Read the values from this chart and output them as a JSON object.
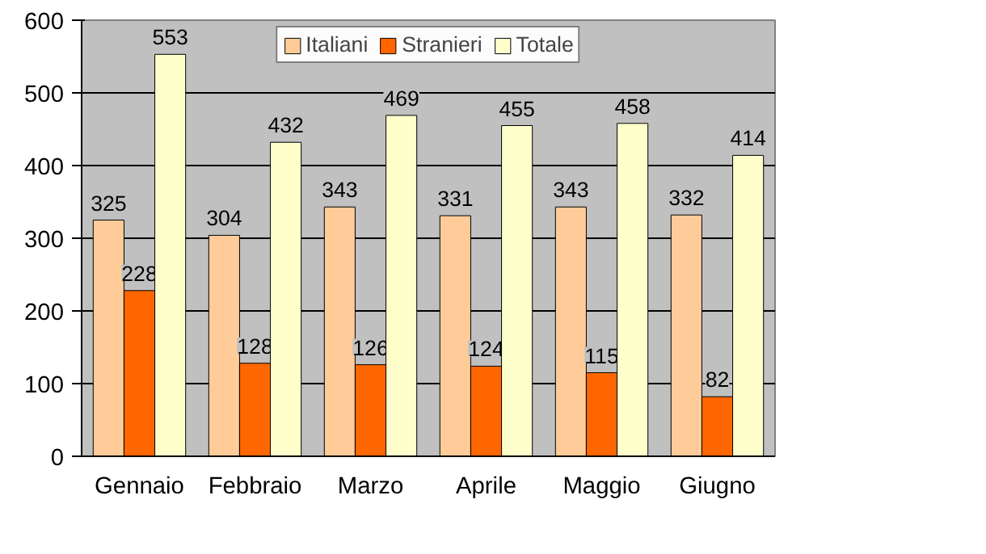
{
  "chart_data": {
    "type": "bar",
    "categories": [
      "Gennaio",
      "Febbraio",
      "Marzo",
      "Aprile",
      "Maggio",
      "Giugno"
    ],
    "series": [
      {
        "name": "Italiani",
        "color": "#ffcc99",
        "values": [
          325,
          304,
          343,
          331,
          343,
          332
        ]
      },
      {
        "name": "Stranieri",
        "color": "#ff6600",
        "values": [
          228,
          128,
          126,
          124,
          115,
          82
        ]
      },
      {
        "name": "Totale",
        "color": "#ffffcc",
        "values": [
          553,
          432,
          469,
          455,
          458,
          414
        ]
      }
    ],
    "ylim": [
      0,
      600
    ],
    "yticks": [
      0,
      100,
      200,
      300,
      400,
      500,
      600
    ],
    "grid": "y",
    "legend": "top",
    "data_labels": true
  }
}
